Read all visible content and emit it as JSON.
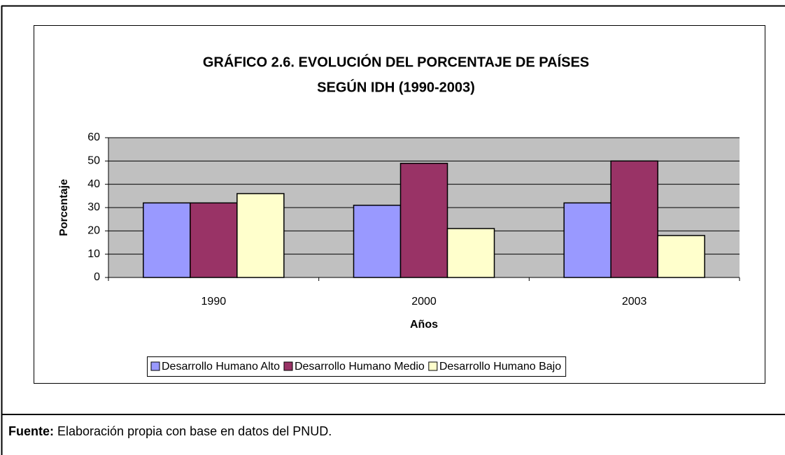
{
  "chart_data": {
    "type": "bar",
    "title": [
      "GRÁFICO 2.6. EVOLUCIÓN DEL PORCENTAJE DE PAÍSES",
      "SEGÚN  IDH (1990-2003)"
    ],
    "xlabel": "Años",
    "ylabel": "Porcentaje",
    "categories": [
      "1990",
      "2000",
      "2003"
    ],
    "series": [
      {
        "name": "Desarrollo Humano Alto",
        "color": "#9999ff",
        "values": [
          32,
          31,
          32
        ]
      },
      {
        "name": "Desarrollo Humano Medio",
        "color": "#993366",
        "values": [
          32,
          49,
          50
        ]
      },
      {
        "name": "Desarrollo Humano Bajo",
        "color": "#ffffcc",
        "values": [
          36,
          21,
          18
        ]
      }
    ],
    "ylim": [
      0,
      60
    ],
    "yticks": [
      0,
      10,
      20,
      30,
      40,
      50,
      60
    ],
    "grid": true,
    "legend": "bottom"
  },
  "footer": {
    "label": "Fuente:",
    "text": "Elaboración propia con base en datos del PNUD."
  }
}
